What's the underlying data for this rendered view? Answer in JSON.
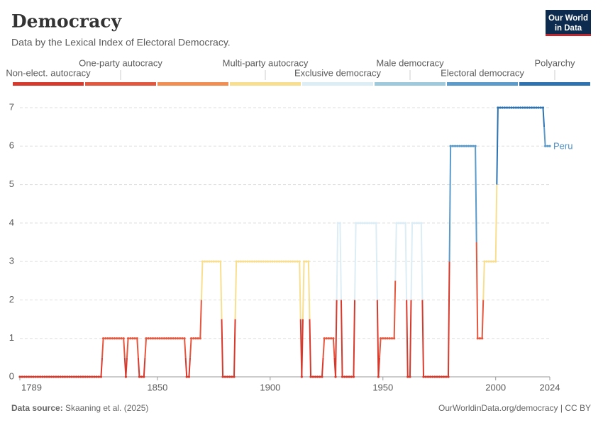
{
  "chart_data": {
    "type": "line",
    "title": "Democracy",
    "subtitle": "Data by the Lexical Index of Electoral Democracy.",
    "logo": [
      "Our World",
      "in Data"
    ],
    "legend": {
      "items": [
        {
          "label": "Non-elect. autocracy",
          "color": "#d73a2c"
        },
        {
          "label": "One-party autocracy",
          "color": "#e4573f"
        },
        {
          "color": "#f28e52"
        },
        {
          "label": "Multi-party autocracy",
          "color": "#f8df90"
        },
        {
          "label": "Exclusive democracy",
          "color": "#dcedf6"
        },
        {
          "label": "Male democracy",
          "color": "#9ec8dc"
        },
        {
          "label": "Electoral democracy",
          "color": "#5a9bcc"
        },
        {
          "label": "Polyarchy",
          "color": "#2e73b1"
        }
      ]
    },
    "x": [
      1789,
      1790,
      1791,
      1792,
      1793,
      1794,
      1795,
      1796,
      1797,
      1798,
      1799,
      1800,
      1801,
      1802,
      1803,
      1804,
      1805,
      1806,
      1807,
      1808,
      1809,
      1810,
      1811,
      1812,
      1813,
      1814,
      1815,
      1816,
      1817,
      1818,
      1819,
      1820,
      1821,
      1822,
      1823,
      1824,
      1825,
      1826,
      1827,
      1828,
      1829,
      1830,
      1831,
      1832,
      1833,
      1834,
      1835,
      1836,
      1837,
      1838,
      1839,
      1840,
      1841,
      1842,
      1843,
      1844,
      1845,
      1846,
      1847,
      1848,
      1849,
      1850,
      1851,
      1852,
      1853,
      1854,
      1855,
      1856,
      1857,
      1858,
      1859,
      1860,
      1861,
      1862,
      1863,
      1864,
      1865,
      1866,
      1867,
      1868,
      1869,
      1870,
      1871,
      1872,
      1873,
      1874,
      1875,
      1876,
      1877,
      1878,
      1879,
      1880,
      1881,
      1882,
      1883,
      1884,
      1885,
      1886,
      1887,
      1888,
      1889,
      1890,
      1891,
      1892,
      1893,
      1894,
      1895,
      1896,
      1897,
      1898,
      1899,
      1900,
      1901,
      1902,
      1903,
      1904,
      1905,
      1906,
      1907,
      1908,
      1909,
      1910,
      1911,
      1912,
      1913,
      1914,
      1915,
      1916,
      1917,
      1918,
      1919,
      1920,
      1921,
      1922,
      1923,
      1924,
      1925,
      1926,
      1927,
      1928,
      1929,
      1930,
      1931,
      1932,
      1933,
      1934,
      1935,
      1936,
      1937,
      1938,
      1939,
      1940,
      1941,
      1942,
      1943,
      1944,
      1945,
      1946,
      1947,
      1948,
      1949,
      1950,
      1951,
      1952,
      1953,
      1954,
      1955,
      1956,
      1957,
      1958,
      1959,
      1960,
      1961,
      1962,
      1963,
      1964,
      1965,
      1966,
      1967,
      1968,
      1969,
      1970,
      1971,
      1972,
      1973,
      1974,
      1975,
      1976,
      1977,
      1978,
      1979,
      1980,
      1981,
      1982,
      1983,
      1984,
      1985,
      1986,
      1987,
      1988,
      1989,
      1990,
      1991,
      1992,
      1993,
      1994,
      1995,
      1996,
      1997,
      1998,
      1999,
      2000,
      2001,
      2002,
      2003,
      2004,
      2005,
      2006,
      2007,
      2008,
      2009,
      2010,
      2011,
      2012,
      2013,
      2014,
      2015,
      2016,
      2017,
      2018,
      2019,
      2020,
      2021,
      2022,
      2023,
      2024
    ],
    "series": [
      {
        "name": "Peru",
        "color": "#4e8fc6",
        "values": [
          0,
          0,
          0,
          0,
          0,
          0,
          0,
          0,
          0,
          0,
          0,
          0,
          0,
          0,
          0,
          0,
          0,
          0,
          0,
          0,
          0,
          0,
          0,
          0,
          0,
          0,
          0,
          0,
          0,
          0,
          0,
          0,
          0,
          0,
          0,
          0,
          0,
          1,
          1,
          1,
          1,
          1,
          1,
          1,
          1,
          1,
          1,
          0,
          1,
          1,
          1,
          1,
          1,
          0,
          0,
          0,
          1,
          1,
          1,
          1,
          1,
          1,
          1,
          1,
          1,
          1,
          1,
          1,
          1,
          1,
          1,
          1,
          1,
          1,
          0,
          0,
          1,
          1,
          1,
          1,
          1,
          3,
          3,
          3,
          3,
          3,
          3,
          3,
          3,
          3,
          0,
          0,
          0,
          0,
          0,
          0,
          3,
          3,
          3,
          3,
          3,
          3,
          3,
          3,
          3,
          3,
          3,
          3,
          3,
          3,
          3,
          3,
          3,
          3,
          3,
          3,
          3,
          3,
          3,
          3,
          3,
          3,
          3,
          3,
          3,
          0,
          3,
          3,
          3,
          0,
          0,
          0,
          0,
          0,
          0,
          1,
          1,
          1,
          1,
          1,
          0,
          4,
          4,
          0,
          0,
          0,
          0,
          0,
          0,
          4,
          4,
          4,
          4,
          4,
          4,
          4,
          4,
          4,
          4,
          0,
          1,
          1,
          1,
          1,
          1,
          1,
          1,
          4,
          4,
          4,
          4,
          4,
          0,
          0,
          4,
          4,
          4,
          4,
          4,
          0,
          0,
          0,
          0,
          0,
          0,
          0,
          0,
          0,
          0,
          0,
          0,
          6,
          6,
          6,
          6,
          6,
          6,
          6,
          6,
          6,
          6,
          6,
          6,
          1,
          1,
          1,
          3,
          3,
          3,
          3,
          3,
          3,
          7,
          7,
          7,
          7,
          7,
          7,
          7,
          7,
          7,
          7,
          7,
          7,
          7,
          7,
          7,
          7,
          7,
          7,
          7,
          7,
          7,
          6,
          6,
          6
        ]
      }
    ],
    "xlim": [
      1789,
      2024
    ],
    "xticks": [
      1789,
      1850,
      1900,
      1950,
      2000,
      2024
    ],
    "ylim": [
      0,
      7
    ],
    "yticks": [
      0,
      1,
      2,
      3,
      4,
      5,
      6,
      7
    ],
    "grid": true,
    "source_label": "Data source:",
    "source": "Skaaning et al. (2025)",
    "url": "OurWorldinData.org/democracy | CC BY"
  }
}
